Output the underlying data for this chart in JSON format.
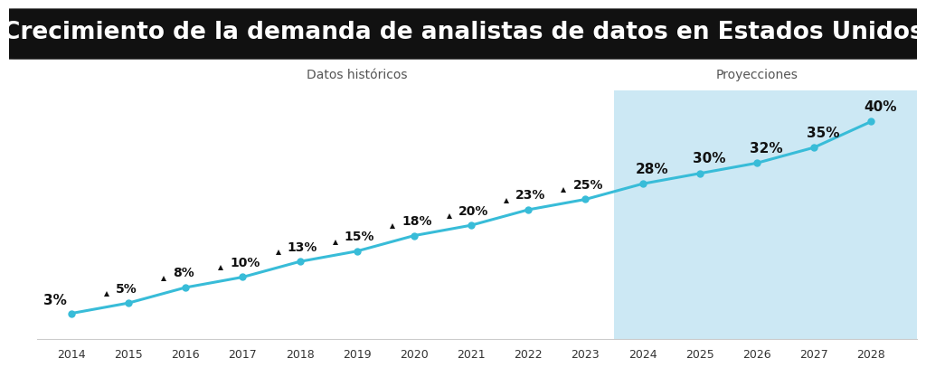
{
  "title": "Crecimiento de la demanda de analistas de datos en Estados Unidos",
  "title_bg_color": "#111111",
  "title_text_color": "#ffffff",
  "chart_bg_color": "#ffffff",
  "chart_area_bg": "#ffffff",
  "projection_bg_color": "#cce8f4",
  "line_color": "#38bcd8",
  "marker_color": "#38bcd8",
  "years": [
    2014,
    2015,
    2016,
    2017,
    2018,
    2019,
    2020,
    2021,
    2022,
    2023,
    2024,
    2025,
    2026,
    2027,
    2028
  ],
  "values": [
    3,
    5,
    8,
    10,
    13,
    15,
    18,
    20,
    23,
    25,
    28,
    30,
    32,
    35,
    40
  ],
  "labels": [
    "3%",
    "5%",
    "8%",
    "10%",
    "13%",
    "15%",
    "18%",
    "20%",
    "23%",
    "25%",
    "28%",
    "30%",
    "32%",
    "35%",
    "40%"
  ],
  "has_triangle": [
    false,
    true,
    true,
    true,
    true,
    true,
    true,
    true,
    true,
    true,
    false,
    false,
    false,
    false,
    false
  ],
  "projection_start_year": 2024,
  "historical_label": "Datos históricos",
  "projection_label": "Proyecciones",
  "annotation_color": "#111111",
  "label_fontsize": 10,
  "axis_fontsize": 9,
  "section_label_fontsize": 10,
  "title_fontsize": 19,
  "ylim": [
    -2,
    46
  ],
  "xlim": [
    2013.4,
    2028.8
  ]
}
